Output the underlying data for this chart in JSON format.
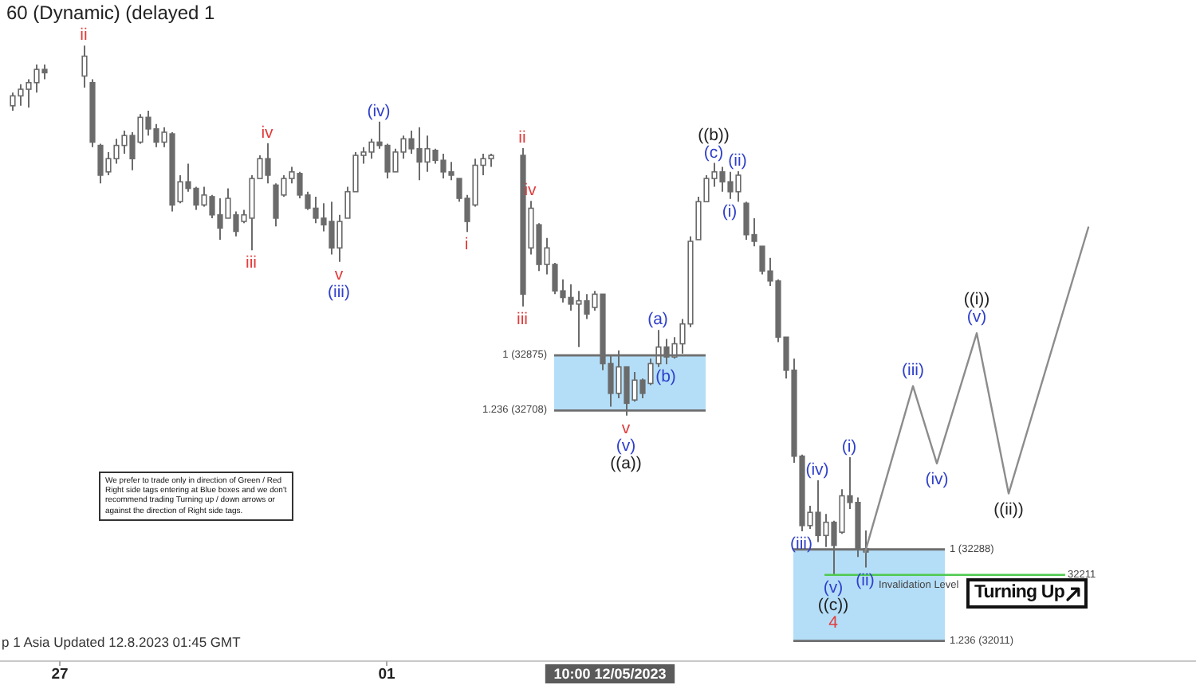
{
  "chart_data": {
    "type": "candlestick",
    "title": "60 (Dynamic) (delayed 1",
    "color": "#6b6b6b",
    "categories": [
      null,
      null,
      null,
      null,
      null,
      null,
      null,
      "27",
      null,
      null,
      null,
      null,
      null,
      null,
      null,
      null,
      null,
      null,
      null,
      null,
      null,
      null,
      null,
      null,
      null,
      null,
      null,
      null,
      null,
      null,
      null,
      null,
      null,
      null,
      null,
      null,
      null,
      null,
      null,
      null,
      null,
      null,
      null,
      null,
      null,
      null,
      null,
      null,
      "01",
      null,
      null,
      null,
      null,
      null,
      null,
      null,
      null,
      null,
      null,
      null,
      null,
      null,
      null,
      null,
      null,
      null,
      null,
      null,
      null,
      null,
      null,
      null,
      null,
      null,
      null,
      null,
      "10:00 12/05/2023",
      null,
      null,
      null,
      null,
      null,
      null,
      null,
      null,
      null,
      null,
      null,
      null,
      null,
      null,
      null,
      null,
      null,
      null,
      null,
      null,
      null,
      null,
      null,
      null,
      null,
      null,
      null,
      null,
      null,
      null,
      null,
      null,
      null,
      null,
      null,
      null,
      null,
      null,
      null,
      null,
      null,
      null,
      null,
      null,
      null,
      null,
      null,
      null,
      null,
      null,
      null,
      null,
      null,
      null,
      null,
      null,
      null,
      null,
      null,
      null,
      null,
      null,
      null,
      null,
      null,
      null,
      null,
      null,
      null,
      null,
      null,
      null,
      null
    ],
    "ohlc": [
      null,
      [
        33630,
        33670,
        33615,
        33660
      ],
      [
        33660,
        33695,
        33630,
        33680
      ],
      [
        33680,
        33710,
        33625,
        33700
      ],
      [
        33700,
        33755,
        33670,
        33740
      ],
      [
        33740,
        33755,
        33710,
        33730
      ],
      null,
      null,
      null,
      null,
      [
        33720,
        33812,
        33685,
        33780
      ],
      [
        33700,
        33710,
        33505,
        33520
      ],
      [
        33510,
        33515,
        33395,
        33420
      ],
      [
        33430,
        33490,
        33420,
        33470
      ],
      [
        33470,
        33530,
        33455,
        33510
      ],
      [
        33510,
        33555,
        33485,
        33540
      ],
      [
        33540,
        33550,
        33435,
        33470
      ],
      [
        33520,
        33605,
        33515,
        33595
      ],
      [
        33595,
        33615,
        33540,
        33560
      ],
      [
        33560,
        33575,
        33505,
        33520
      ],
      [
        33520,
        33565,
        33505,
        33550
      ],
      [
        33545,
        33550,
        33310,
        33330
      ],
      [
        33340,
        33420,
        33335,
        33400
      ],
      [
        33400,
        33455,
        33370,
        33380
      ],
      [
        33380,
        33385,
        33315,
        33330
      ],
      [
        33330,
        33385,
        33325,
        33360
      ],
      [
        33355,
        33360,
        33290,
        33300
      ],
      [
        33300,
        33350,
        33225,
        33260
      ],
      [
        33290,
        33380,
        33290,
        33350
      ],
      [
        33300,
        33310,
        33235,
        33250
      ],
      [
        33280,
        33315,
        33275,
        33300
      ],
      [
        33290,
        33420,
        33193,
        33410
      ],
      [
        33410,
        33480,
        33410,
        33470
      ],
      [
        33470,
        33517,
        33395,
        33420
      ],
      [
        33390,
        33395,
        33265,
        33290
      ],
      [
        33360,
        33420,
        33355,
        33410
      ],
      [
        33410,
        33445,
        33395,
        33430
      ],
      [
        33425,
        33430,
        33350,
        33360
      ],
      [
        33360,
        33370,
        33315,
        33320
      ],
      [
        33320,
        33355,
        33275,
        33290
      ],
      [
        33290,
        33335,
        33250,
        33270
      ],
      [
        33280,
        33340,
        33180,
        33200
      ],
      [
        33200,
        33300,
        33158,
        33280
      ],
      [
        33290,
        33385,
        33290,
        33370
      ],
      [
        33370,
        33490,
        33370,
        33480
      ],
      [
        33480,
        33505,
        33455,
        33490
      ],
      [
        33490,
        33530,
        33470,
        33520
      ],
      [
        33520,
        33582,
        33500,
        33510
      ],
      [
        33510,
        33515,
        33410,
        33430
      ],
      [
        33430,
        33500,
        33430,
        33490
      ],
      [
        33490,
        33540,
        33470,
        33530
      ],
      [
        33530,
        33555,
        33485,
        33500
      ],
      [
        33500,
        33565,
        33405,
        33460
      ],
      [
        33460,
        33540,
        33430,
        33500
      ],
      [
        33495,
        33500,
        33455,
        33465
      ],
      [
        33465,
        33485,
        33410,
        33430
      ],
      [
        33430,
        33460,
        33405,
        33420
      ],
      [
        33410,
        33410,
        33340,
        33350
      ],
      [
        33350,
        33360,
        33248,
        33280
      ],
      [
        33330,
        33470,
        33325,
        33450
      ],
      [
        33450,
        33485,
        33420,
        33470
      ],
      [
        33470,
        33485,
        33445,
        33480
      ],
      null,
      null,
      null,
      [
        33480,
        33502,
        33023,
        33060
      ],
      [
        33200,
        33342,
        33180,
        33320
      ],
      [
        33270,
        33275,
        33130,
        33150
      ],
      [
        33150,
        33230,
        33120,
        33200
      ],
      [
        33150,
        33155,
        33060,
        33070
      ],
      [
        33070,
        33105,
        33035,
        33050
      ],
      [
        33050,
        33090,
        33010,
        33030
      ],
      [
        33030,
        33070,
        32900,
        33040
      ],
      [
        33040,
        33060,
        32985,
        33000
      ],
      [
        33020,
        33070,
        33010,
        33060
      ],
      [
        33060,
        33060,
        32830,
        32850
      ],
      [
        32850,
        32875,
        32720,
        32760
      ],
      [
        32760,
        32890,
        32745,
        32840
      ],
      [
        32840,
        32840,
        32693,
        32730
      ],
      [
        32740,
        32825,
        32735,
        32800
      ],
      [
        32800,
        32805,
        32745,
        32760
      ],
      [
        32790,
        32865,
        32785,
        32850
      ],
      [
        32850,
        32952,
        32840,
        32900
      ],
      [
        32900,
        32925,
        32848,
        32870
      ],
      [
        32870,
        32930,
        32865,
        32910
      ],
      [
        32910,
        32985,
        32880,
        32970
      ],
      [
        32970,
        33235,
        32960,
        33220
      ],
      [
        33225,
        33355,
        33225,
        33340
      ],
      [
        33340,
        33420,
        33340,
        33410
      ],
      [
        33410,
        33457,
        33385,
        33430
      ],
      [
        33430,
        33445,
        33370,
        33400
      ],
      [
        33400,
        33430,
        33348,
        33370
      ],
      [
        33370,
        33432,
        33340,
        33420
      ],
      [
        33335,
        33340,
        33225,
        33240
      ],
      [
        33240,
        33290,
        33205,
        33220
      ],
      [
        33205,
        33205,
        33120,
        33130
      ],
      [
        33130,
        33170,
        33085,
        33100
      ],
      [
        33100,
        33105,
        32915,
        32930
      ],
      [
        32930,
        32930,
        32805,
        32830
      ],
      [
        32830,
        32865,
        32550,
        32570
      ],
      [
        32570,
        32575,
        32343,
        32360
      ],
      [
        32360,
        32420,
        32350,
        32400
      ],
      [
        32400,
        32497,
        32310,
        32330
      ],
      [
        32330,
        32395,
        32295,
        32370
      ],
      [
        32370,
        32375,
        32211,
        32300
      ],
      [
        32340,
        32470,
        32335,
        32450
      ],
      [
        32450,
        32567,
        32410,
        32430
      ],
      [
        32430,
        32445,
        32265,
        32290
      ],
      [
        32290,
        32345,
        32233,
        32280
      ],
      null,
      null,
      null,
      null,
      null,
      null,
      null,
      null,
      null,
      null,
      null,
      null,
      null,
      null,
      null,
      null,
      null,
      null,
      null,
      null,
      null,
      null,
      null,
      null,
      null,
      null,
      null,
      null,
      null,
      null,
      null,
      null,
      null,
      null,
      null,
      null,
      null,
      null,
      null,
      null,
      null
    ],
    "series": [
      {
        "type": "line",
        "color": "#8c8c8c",
        "values": [
          null,
          null,
          null,
          null,
          null,
          null,
          null,
          null,
          null,
          null,
          null,
          null,
          null,
          null,
          null,
          null,
          null,
          null,
          null,
          null,
          null,
          null,
          null,
          null,
          null,
          null,
          null,
          null,
          null,
          null,
          null,
          null,
          null,
          null,
          null,
          null,
          null,
          null,
          null,
          null,
          null,
          null,
          null,
          null,
          null,
          null,
          null,
          null,
          null,
          null,
          null,
          null,
          null,
          null,
          null,
          null,
          null,
          null,
          null,
          null,
          null,
          null,
          null,
          null,
          null,
          null,
          null,
          null,
          null,
          null,
          null,
          null,
          null,
          null,
          null,
          null,
          null,
          null,
          null,
          null,
          null,
          null,
          null,
          null,
          null,
          null,
          null,
          null,
          null,
          null,
          null,
          null,
          null,
          null,
          null,
          null,
          null,
          null,
          null,
          null,
          null,
          null,
          null,
          null,
          null,
          null,
          null,
          null,
          32280,
          null,
          null,
          null,
          null,
          null,
          32782,
          null,
          null,
          32548,
          null,
          null,
          null,
          null,
          32942,
          null,
          null,
          null,
          32457,
          null,
          null,
          null,
          null,
          null,
          null,
          null,
          null,
          null,
          33262,
          null,
          null,
          null,
          null,
          null,
          null,
          null,
          null,
          null,
          null,
          null,
          null,
          null
        ]
      },
      {
        "type": "line",
        "color": "#acdaf7",
        "values": [
          null,
          null,
          null,
          null,
          null,
          null,
          null,
          null,
          null,
          null,
          null,
          null,
          null,
          null,
          null,
          null,
          null,
          null,
          null,
          null,
          null,
          null,
          null,
          null,
          null,
          null,
          null,
          null,
          null,
          null,
          null,
          null,
          null,
          null,
          null,
          null,
          null,
          null,
          null,
          null,
          null,
          null,
          null,
          null,
          null,
          null,
          null,
          null,
          null,
          null,
          null,
          null,
          null,
          null,
          null,
          null,
          null,
          null,
          null,
          null,
          null,
          null,
          null,
          null,
          null,
          null,
          null,
          null,
          null,
          null,
          null,
          null,
          null,
          null,
          null,
          null,
          null,
          null,
          null,
          null,
          null,
          null,
          null,
          null,
          null,
          null,
          null,
          null,
          null,
          null,
          null,
          null,
          null,
          null,
          null,
          null,
          null,
          null,
          null,
          null,
          null,
          null,
          null,
          null,
          null,
          null,
          null,
          null,
          null,
          null,
          null,
          null,
          null,
          null,
          null,
          null,
          null,
          null,
          null,
          null,
          null,
          null,
          null,
          null,
          null,
          null,
          null,
          null,
          null,
          null,
          null,
          null,
          null,
          null,
          null,
          null,
          null,
          null,
          null,
          null,
          null,
          null,
          null,
          null,
          null,
          null,
          null,
          null,
          null,
          null
        ],
        "lower": [
          null,
          null,
          null,
          null,
          null,
          null,
          null,
          null,
          null,
          null,
          null,
          null,
          null,
          null,
          null,
          null,
          null,
          null,
          null,
          null,
          null,
          null,
          null,
          null,
          null,
          null,
          null,
          null,
          null,
          null,
          null,
          null,
          null,
          null,
          null,
          null,
          null,
          null,
          null,
          null,
          null,
          null,
          null,
          null,
          null,
          null,
          null,
          null,
          null,
          null,
          null,
          null,
          null,
          null,
          null,
          null,
          null,
          null,
          null,
          null,
          null,
          null,
          null,
          null,
          null,
          null,
          null,
          null,
          null,
          32708,
          32708,
          32708,
          32708,
          32708,
          32708,
          32708,
          32708,
          32708,
          32708,
          32708,
          32708,
          32708,
          32708,
          32708,
          32708,
          32708,
          32708,
          32708,
          32708,
          null,
          null,
          null,
          null,
          null,
          null,
          null,
          null,
          null,
          null,
          null,
          null,
          null,
          null,
          null,
          null,
          null,
          null,
          null,
          null,
          null,
          null,
          null,
          null,
          null,
          null,
          null,
          null,
          null,
          null,
          null,
          null,
          null,
          null,
          null,
          null,
          null,
          null,
          null,
          null,
          null,
          null,
          null,
          null,
          null,
          null,
          null,
          null,
          null,
          null,
          null,
          null,
          null,
          null,
          null,
          null,
          null,
          null,
          null,
          null,
          null
        ],
        "upper": [
          null,
          null,
          null,
          null,
          null,
          null,
          null,
          null,
          null,
          null,
          null,
          null,
          null,
          null,
          null,
          null,
          null,
          null,
          null,
          null,
          null,
          null,
          null,
          null,
          null,
          null,
          null,
          null,
          null,
          null,
          null,
          null,
          null,
          null,
          null,
          null,
          null,
          null,
          null,
          null,
          null,
          null,
          null,
          null,
          null,
          null,
          null,
          null,
          null,
          null,
          null,
          null,
          null,
          null,
          null,
          null,
          null,
          null,
          null,
          null,
          null,
          null,
          null,
          null,
          null,
          null,
          null,
          null,
          null,
          32875,
          32875,
          32875,
          32875,
          32875,
          32875,
          32875,
          32875,
          32875,
          32875,
          32875,
          32875,
          32875,
          32875,
          32875,
          32875,
          32875,
          32875,
          32875,
          32875,
          null,
          null,
          null,
          null,
          null,
          null,
          null,
          null,
          null,
          null,
          null,
          null,
          null,
          null,
          null,
          null,
          null,
          null,
          null,
          null,
          null,
          null,
          null,
          null,
          null,
          null,
          null,
          null,
          null,
          null,
          null,
          null,
          null,
          null,
          null,
          null,
          null,
          null,
          null,
          null,
          null,
          null,
          null,
          null,
          null,
          null,
          null,
          null,
          null,
          null,
          null,
          null,
          null,
          null,
          null,
          null,
          null,
          null,
          null,
          null,
          null
        ]
      },
      {
        "type": "line",
        "color": "#acdaf7",
        "values": [
          null,
          null,
          null,
          null,
          null,
          null,
          null,
          null,
          null,
          null,
          null,
          null,
          null,
          null,
          null,
          null,
          null,
          null,
          null,
          null,
          null,
          null,
          null,
          null,
          null,
          null,
          null,
          null,
          null,
          null,
          null,
          null,
          null,
          null,
          null,
          null,
          null,
          null,
          null,
          null,
          null,
          null,
          null,
          null,
          null,
          null,
          null,
          null,
          null,
          null,
          null,
          null,
          null,
          null,
          null,
          null,
          null,
          null,
          null,
          null,
          null,
          null,
          null,
          null,
          null,
          null,
          null,
          null,
          null,
          null,
          null,
          null,
          null,
          null,
          null,
          null,
          null,
          null,
          null,
          null,
          null,
          null,
          null,
          null,
          null,
          null,
          null,
          null,
          null,
          null,
          null,
          null,
          null,
          null,
          null,
          null,
          null,
          null,
          null,
          null,
          null,
          null,
          null,
          null,
          null,
          null,
          null,
          null,
          null,
          null,
          null,
          null,
          null,
          null,
          null,
          null,
          null,
          null,
          null,
          null,
          null,
          null,
          null,
          null,
          null,
          null,
          null,
          null,
          null,
          null,
          null,
          null,
          null,
          null,
          null,
          null,
          null,
          null,
          null,
          null,
          null,
          null,
          null,
          null,
          null,
          null,
          null,
          null,
          null,
          null
        ],
        "lower": [
          null,
          null,
          null,
          null,
          null,
          null,
          null,
          null,
          null,
          null,
          null,
          null,
          null,
          null,
          null,
          null,
          null,
          null,
          null,
          null,
          null,
          null,
          null,
          null,
          null,
          null,
          null,
          null,
          null,
          null,
          null,
          null,
          null,
          null,
          null,
          null,
          null,
          null,
          null,
          null,
          null,
          null,
          null,
          null,
          null,
          null,
          null,
          null,
          null,
          null,
          null,
          null,
          null,
          null,
          null,
          null,
          null,
          null,
          null,
          null,
          null,
          null,
          null,
          null,
          null,
          null,
          null,
          null,
          null,
          null,
          null,
          null,
          null,
          null,
          null,
          null,
          null,
          null,
          null,
          null,
          null,
          null,
          null,
          null,
          null,
          null,
          null,
          null,
          null,
          null,
          null,
          null,
          null,
          null,
          null,
          null,
          null,
          null,
          null,
          32011,
          32011,
          32011,
          32011,
          32011,
          32011,
          32011,
          32011,
          32011,
          32011,
          32011,
          32011,
          32011,
          32011,
          32011,
          32011,
          32011,
          32011,
          32011,
          32011,
          null,
          null,
          null,
          null,
          null,
          null,
          null,
          null,
          null,
          null,
          null,
          null,
          null,
          null,
          null,
          null,
          null,
          null,
          null,
          null,
          null,
          null,
          null,
          null,
          null,
          null,
          null,
          null,
          null,
          null,
          null
        ],
        "upper": [
          null,
          null,
          null,
          null,
          null,
          null,
          null,
          null,
          null,
          null,
          null,
          null,
          null,
          null,
          null,
          null,
          null,
          null,
          null,
          null,
          null,
          null,
          null,
          null,
          null,
          null,
          null,
          null,
          null,
          null,
          null,
          null,
          null,
          null,
          null,
          null,
          null,
          null,
          null,
          null,
          null,
          null,
          null,
          null,
          null,
          null,
          null,
          null,
          null,
          null,
          null,
          null,
          null,
          null,
          null,
          null,
          null,
          null,
          null,
          null,
          null,
          null,
          null,
          null,
          null,
          null,
          null,
          null,
          null,
          null,
          null,
          null,
          null,
          null,
          null,
          null,
          null,
          null,
          null,
          null,
          null,
          null,
          null,
          null,
          null,
          null,
          null,
          null,
          null,
          null,
          null,
          null,
          null,
          null,
          null,
          null,
          null,
          null,
          null,
          32288,
          32288,
          32288,
          32288,
          32288,
          32288,
          32288,
          32288,
          32288,
          32288,
          32288,
          32288,
          32288,
          32288,
          32288,
          32288,
          32288,
          32288,
          32288,
          32288,
          null,
          null,
          null,
          null,
          null,
          null,
          null,
          null,
          null,
          null,
          null,
          null,
          null,
          null,
          null,
          null,
          null,
          null,
          null,
          null,
          null,
          null,
          null,
          null,
          null,
          null,
          null,
          null,
          null,
          null,
          null
        ]
      },
      {
        "type": "line",
        "name": "32211",
        "color": "#4fc94f",
        "values": [
          null,
          null,
          null,
          null,
          null,
          null,
          null,
          null,
          null,
          null,
          null,
          null,
          null,
          null,
          null,
          null,
          null,
          null,
          null,
          null,
          null,
          null,
          null,
          null,
          null,
          null,
          null,
          null,
          null,
          null,
          null,
          null,
          null,
          null,
          null,
          null,
          null,
          null,
          null,
          null,
          null,
          null,
          null,
          null,
          null,
          null,
          null,
          null,
          null,
          null,
          null,
          null,
          null,
          null,
          null,
          null,
          null,
          null,
          null,
          null,
          null,
          null,
          null,
          null,
          null,
          null,
          null,
          null,
          null,
          null,
          null,
          null,
          null,
          null,
          null,
          null,
          null,
          null,
          null,
          null,
          null,
          null,
          null,
          null,
          null,
          null,
          null,
          null,
          null,
          null,
          null,
          null,
          null,
          null,
          null,
          null,
          null,
          null,
          null,
          null,
          null,
          null,
          null,
          32211,
          32211,
          32211,
          32211,
          32211,
          32211,
          32211,
          32211,
          32211,
          32211,
          32211,
          32211,
          32211,
          32211,
          32211,
          32211,
          32211,
          32211,
          32211,
          32211,
          32211,
          32211,
          32211,
          32211,
          32211,
          32211,
          32211,
          32211,
          32211,
          32211,
          32211,
          null,
          null,
          null,
          null,
          null,
          null,
          null,
          null,
          null,
          null,
          null,
          null,
          null,
          null,
          null,
          null
        ]
      }
    ],
    "ylim": [
      31950,
      33950
    ],
    "tick_labels": "x",
    "ref_lines": [
      {
        "axis": "y",
        "value": 32875,
        "label": "1 (32875)",
        "color": "#6e6e6e"
      },
      {
        "axis": "y",
        "value": 32708,
        "label": "1.236 (32708)",
        "color": "#6e6e6e"
      },
      {
        "axis": "y",
        "value": 32288,
        "label": "1 (32288)",
        "color": "#6e6e6e"
      },
      {
        "axis": "y",
        "value": 32011,
        "label": "1.236 (32011)",
        "color": "#6e6e6e"
      }
    ],
    "annotations": [
      "We prefer to trade only in direction of Green / Red Right side tags entering at Blue boxes and we don't recommend trading Turning up / down arrows or against the direction of Right side tags.",
      "p 1 Asia Updated 12.8.2023 01:45 GMT",
      "Turning Up",
      "Invalidation Level",
      {
        "text": "ii",
        "y": 33812
      },
      {
        "text": "iii",
        "y": 33193
      },
      {
        "text": "iv",
        "y": 33517
      },
      {
        "text": "v",
        "y": 33158
      },
      {
        "text": "(iii)",
        "y": 33158
      },
      {
        "text": "(iv)",
        "y": 33582
      },
      {
        "text": "i",
        "y": 33248
      },
      {
        "text": "ii",
        "y": 33502
      },
      {
        "text": "iv",
        "y": 33342
      },
      {
        "text": "iii",
        "y": 33023
      },
      {
        "text": "v",
        "y": 32693
      },
      {
        "text": "(v)",
        "y": 32693
      },
      {
        "text": "((a))",
        "y": 32693
      },
      {
        "text": "(a)",
        "y": 32952
      },
      {
        "text": "(b)",
        "y": 32848
      },
      {
        "text": "(c)",
        "y": 33457
      },
      {
        "text": "((b))",
        "y": 33457
      },
      {
        "text": "(i)",
        "y": 33348
      },
      {
        "text": "(ii)",
        "y": 33432
      },
      {
        "text": "(iii)",
        "y": 32343
      },
      {
        "text": "(iv)",
        "y": 32497
      },
      {
        "text": "(v)",
        "y": 32211
      },
      {
        "text": "((c))",
        "y": 32211
      },
      {
        "text": "4",
        "y": 32211
      },
      {
        "text": "(i)",
        "y": 32567
      },
      {
        "text": "(ii)",
        "y": 32233
      },
      {
        "text": "(iii)",
        "y": 32782
      },
      {
        "text": "(iv)",
        "y": 32548
      },
      {
        "text": "(v)",
        "y": 32942
      },
      {
        "text": "((i))",
        "y": 32942
      },
      {
        "text": "((ii))",
        "y": 32457
      }
    ]
  }
}
